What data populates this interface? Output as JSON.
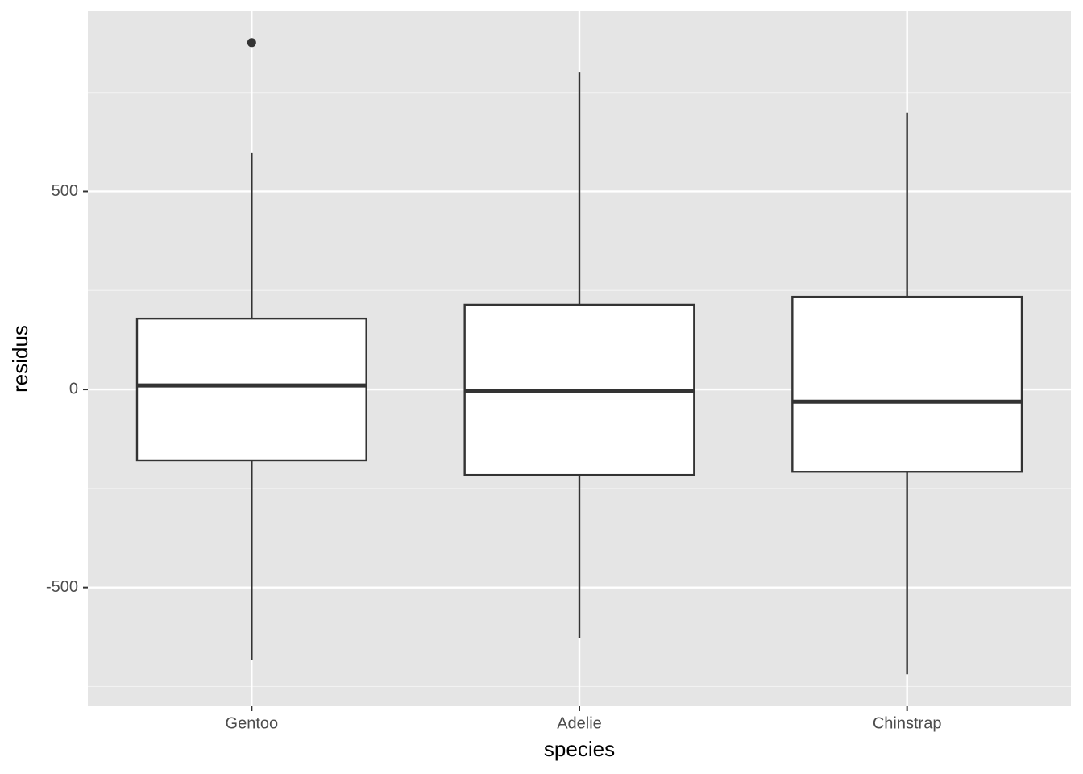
{
  "chart_data": {
    "type": "boxplot",
    "x_label": "species",
    "y_label": "residus",
    "categories": [
      "Gentoo",
      "Adelie",
      "Chinstrap"
    ],
    "whisker_low": [
      -684,
      -627,
      -719
    ],
    "q1": [
      -179,
      -216,
      -208
    ],
    "median": [
      10,
      -4,
      -31
    ],
    "q3": [
      179,
      214,
      234
    ],
    "whisker_high": [
      597,
      802,
      699
    ],
    "outliers": [
      [
        876
      ],
      [],
      []
    ],
    "ylim": [
      -800,
      955
    ],
    "yticks": [
      -500,
      0,
      500
    ],
    "minor_yticks": [
      -750,
      -250,
      250,
      750
    ],
    "grid": true
  }
}
